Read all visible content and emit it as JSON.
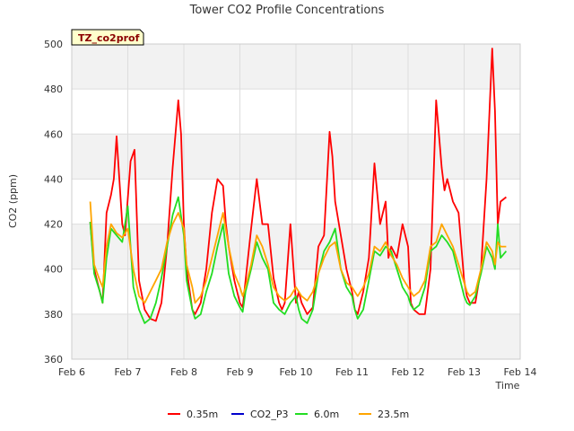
{
  "chart_data": {
    "type": "line",
    "title": "Tower CO2 Profile Concentrations",
    "site_label": "TZ_co2prof",
    "xlabel": "Time",
    "ylabel": "CO2 (ppm)",
    "ylim": [
      360,
      500
    ],
    "xlim": [
      6,
      14
    ],
    "yticks": [
      360,
      380,
      400,
      420,
      440,
      460,
      480,
      500
    ],
    "xticks": [
      {
        "v": 6,
        "label": "Feb 6"
      },
      {
        "v": 7,
        "label": "Feb 7"
      },
      {
        "v": 8,
        "label": "Feb 8"
      },
      {
        "v": 9,
        "label": "Feb 9"
      },
      {
        "v": 10,
        "label": "Feb 10"
      },
      {
        "v": 11,
        "label": "Feb 11"
      },
      {
        "v": 12,
        "label": "Feb 12"
      },
      {
        "v": 13,
        "label": "Feb 13"
      },
      {
        "v": 14,
        "label": "Feb 14"
      }
    ],
    "legend_position": "bottom",
    "series": [
      {
        "name": "0.35m",
        "color": "#ff0000",
        "x": [
          6.33,
          6.4,
          6.5,
          6.55,
          6.62,
          6.7,
          6.75,
          6.8,
          6.9,
          6.95,
          7.05,
          7.12,
          7.2,
          7.3,
          7.4,
          7.5,
          7.6,
          7.7,
          7.8,
          7.9,
          7.95,
          8.0,
          8.05,
          8.15,
          8.2,
          8.3,
          8.4,
          8.5,
          8.6,
          8.7,
          8.75,
          8.8,
          8.9,
          9.0,
          9.05,
          9.1,
          9.2,
          9.3,
          9.4,
          9.5,
          9.6,
          9.7,
          9.75,
          9.8,
          9.9,
          10.0,
          10.05,
          10.1,
          10.2,
          10.3,
          10.4,
          10.5,
          10.6,
          10.65,
          10.7,
          10.8,
          10.9,
          11.0,
          11.05,
          11.1,
          11.2,
          11.3,
          11.4,
          11.5,
          11.6,
          11.65,
          11.7,
          11.8,
          11.9,
          12.0,
          12.05,
          12.1,
          12.2,
          12.3,
          12.4,
          12.5,
          12.6,
          12.65,
          12.7,
          12.8,
          12.9,
          13.0,
          13.05,
          13.1,
          13.2,
          13.3,
          13.4,
          13.5,
          13.55,
          13.6,
          13.65,
          13.75
        ],
        "values": [
          421,
          400,
          390,
          385,
          425,
          433,
          440,
          459,
          420,
          415,
          448,
          453,
          395,
          382,
          378,
          377,
          385,
          410,
          445,
          475,
          460,
          420,
          400,
          382,
          380,
          385,
          400,
          425,
          440,
          437,
          420,
          410,
          395,
          385,
          383,
          395,
          418,
          440,
          420,
          420,
          396,
          385,
          382,
          385,
          420,
          385,
          390,
          385,
          380,
          383,
          410,
          415,
          461,
          450,
          430,
          415,
          400,
          390,
          382,
          380,
          390,
          405,
          447,
          420,
          430,
          405,
          410,
          405,
          420,
          410,
          385,
          382,
          380,
          380,
          400,
          475,
          445,
          435,
          440,
          430,
          425,
          395,
          388,
          385,
          385,
          400,
          440,
          498,
          470,
          420,
          430,
          432
        ]
      },
      {
        "name": "CO2_P3",
        "color": "#0000cc",
        "x": [],
        "values": []
      },
      {
        "name": "6.0m",
        "color": "#22dd22",
        "x": [
          6.33,
          6.4,
          6.5,
          6.55,
          6.62,
          6.7,
          6.8,
          6.9,
          7.0,
          7.1,
          7.2,
          7.3,
          7.4,
          7.5,
          7.6,
          7.7,
          7.8,
          7.9,
          8.0,
          8.05,
          8.15,
          8.2,
          8.3,
          8.4,
          8.5,
          8.6,
          8.7,
          8.8,
          8.9,
          9.0,
          9.05,
          9.1,
          9.2,
          9.3,
          9.4,
          9.5,
          9.6,
          9.7,
          9.8,
          9.9,
          10.0,
          10.05,
          10.1,
          10.2,
          10.3,
          10.4,
          10.5,
          10.6,
          10.7,
          10.8,
          10.9,
          11.0,
          11.05,
          11.1,
          11.2,
          11.3,
          11.4,
          11.5,
          11.6,
          11.7,
          11.8,
          11.9,
          12.0,
          12.05,
          12.1,
          12.2,
          12.3,
          12.4,
          12.5,
          12.6,
          12.7,
          12.8,
          12.9,
          13.0,
          13.05,
          13.1,
          13.2,
          13.3,
          13.4,
          13.5,
          13.55,
          13.6,
          13.65,
          13.75
        ],
        "values": [
          421,
          398,
          390,
          385,
          405,
          418,
          415,
          412,
          428,
          392,
          382,
          376,
          378,
          385,
          396,
          410,
          424,
          432,
          415,
          395,
          382,
          378,
          380,
          390,
          398,
          410,
          420,
          398,
          388,
          383,
          381,
          390,
          400,
          412,
          405,
          400,
          385,
          382,
          380,
          385,
          388,
          382,
          378,
          376,
          382,
          398,
          408,
          412,
          418,
          400,
          392,
          388,
          382,
          378,
          382,
          395,
          408,
          406,
          410,
          408,
          400,
          392,
          388,
          384,
          382,
          384,
          392,
          408,
          410,
          415,
          412,
          408,
          398,
          388,
          385,
          384,
          388,
          398,
          410,
          405,
          400,
          420,
          405,
          408
        ]
      },
      {
        "name": "23.5m",
        "color": "#ffa500",
        "x": [
          6.33,
          6.4,
          6.5,
          6.55,
          6.62,
          6.7,
          6.8,
          6.9,
          7.0,
          7.1,
          7.2,
          7.3,
          7.4,
          7.5,
          7.6,
          7.7,
          7.8,
          7.9,
          8.0,
          8.05,
          8.15,
          8.2,
          8.3,
          8.4,
          8.5,
          8.6,
          8.7,
          8.8,
          8.9,
          9.0,
          9.05,
          9.1,
          9.2,
          9.3,
          9.4,
          9.5,
          9.6,
          9.7,
          9.8,
          9.9,
          10.0,
          10.05,
          10.1,
          10.2,
          10.3,
          10.4,
          10.5,
          10.6,
          10.7,
          10.8,
          10.9,
          11.0,
          11.05,
          11.1,
          11.2,
          11.3,
          11.4,
          11.5,
          11.6,
          11.7,
          11.8,
          11.9,
          12.0,
          12.05,
          12.1,
          12.2,
          12.3,
          12.4,
          12.5,
          12.6,
          12.7,
          12.8,
          12.9,
          13.0,
          13.05,
          13.1,
          13.2,
          13.3,
          13.4,
          13.5,
          13.55,
          13.6,
          13.65,
          13.75
        ],
        "values": [
          430,
          402,
          395,
          392,
          410,
          420,
          416,
          414,
          418,
          400,
          388,
          385,
          390,
          395,
          400,
          412,
          420,
          425,
          418,
          402,
          392,
          385,
          388,
          395,
          405,
          415,
          425,
          410,
          398,
          392,
          388,
          392,
          402,
          415,
          410,
          402,
          392,
          388,
          386,
          388,
          392,
          390,
          388,
          386,
          390,
          398,
          405,
          410,
          412,
          400,
          394,
          392,
          390,
          388,
          392,
          398,
          410,
          408,
          412,
          406,
          402,
          396,
          392,
          390,
          388,
          390,
          395,
          410,
          412,
          420,
          415,
          410,
          402,
          394,
          390,
          388,
          390,
          400,
          412,
          408,
          402,
          412,
          410,
          410
        ]
      }
    ]
  }
}
